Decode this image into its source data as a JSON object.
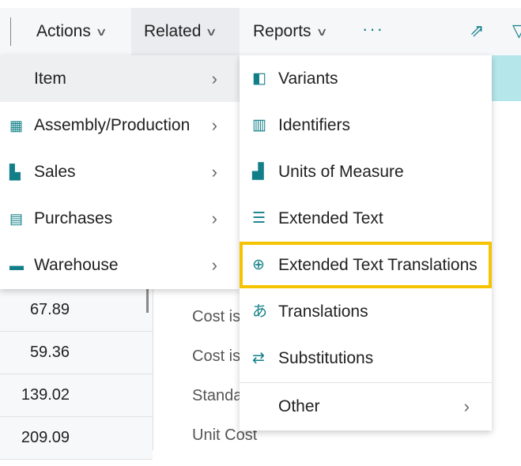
{
  "toolbar": {
    "actions": "Actions",
    "related": "Related",
    "reports": "Reports",
    "more": "···",
    "chevron": "∨"
  },
  "related_menu": {
    "items": [
      {
        "label": "Item",
        "icon": "none"
      },
      {
        "label": "Assembly/Production",
        "icon": "assembly-icon"
      },
      {
        "label": "Sales",
        "icon": "sales-icon"
      },
      {
        "label": "Purchases",
        "icon": "purchases-icon"
      },
      {
        "label": "Warehouse",
        "icon": "warehouse-icon"
      }
    ]
  },
  "item_submenu": {
    "items": [
      {
        "label": "Variants",
        "icon": "variants-icon"
      },
      {
        "label": "Identifiers",
        "icon": "barcode-icon"
      },
      {
        "label": "Units of Measure",
        "icon": "units-icon"
      },
      {
        "label": "Extended Text",
        "icon": "text-icon"
      },
      {
        "label": "Extended Text Translations",
        "icon": "text-translation-icon",
        "highlighted": true
      },
      {
        "label": "Translations",
        "icon": "translation-icon"
      },
      {
        "label": "Substitutions",
        "icon": "substitution-icon"
      }
    ],
    "other": "Other"
  },
  "table": {
    "values": [
      "67.89",
      "59.36",
      "139.02",
      "209.09"
    ]
  },
  "panel": {
    "labels": [
      "Cost is",
      "Cost is",
      "Standa",
      "Unit Cost"
    ]
  },
  "colors": {
    "accent": "#127f88",
    "highlight": "#f5c400"
  }
}
